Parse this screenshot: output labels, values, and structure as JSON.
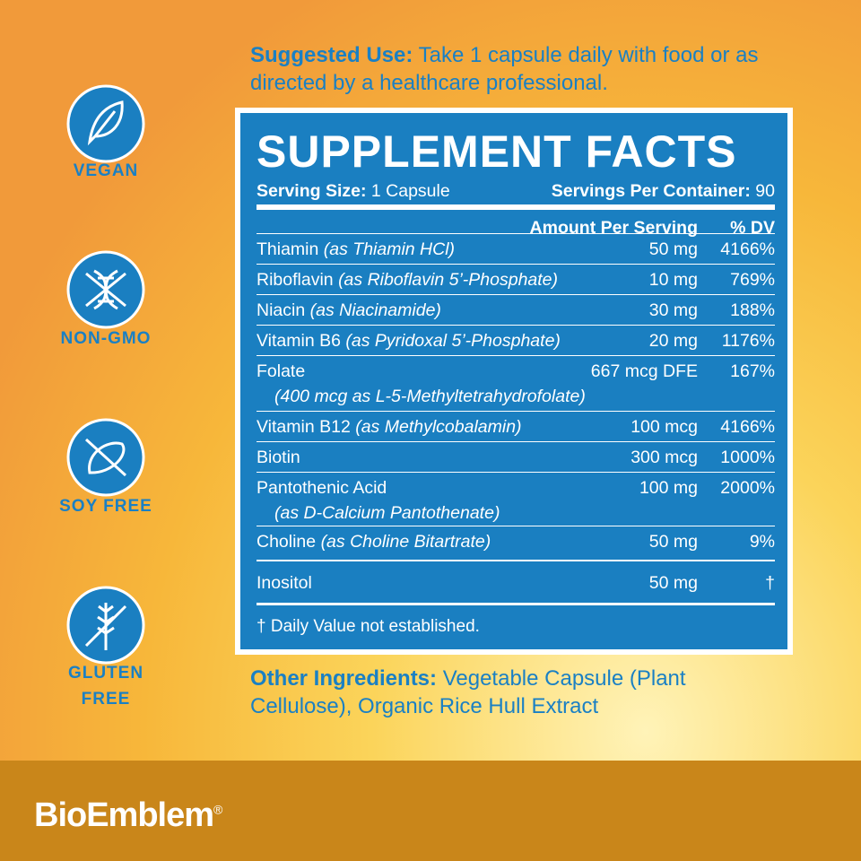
{
  "badges": [
    "VEGAN",
    "NON-GMO",
    "SOY FREE",
    "GLUTEN FREE"
  ],
  "suggested_use": {
    "label": "Suggested Use:",
    "text": "Take 1 capsule daily with food or as directed by a healthcare professional."
  },
  "facts": {
    "title": "SUPPLEMENT FACTS",
    "serving_size": {
      "label": "Serving Size:",
      "value": "1 Capsule"
    },
    "servings_per_container": {
      "label": "Servings Per Container:",
      "value": "90"
    },
    "header": {
      "amount": "Amount Per Serving",
      "dv": "% DV"
    },
    "rows": [
      {
        "name": "Thiamin",
        "source": "(as Thiamin HCl)",
        "amount": "50 mg",
        "dv": "4166%"
      },
      {
        "name": "Riboflavin",
        "source": "(as Riboflavin 5’-Phosphate)",
        "amount": "10 mg",
        "dv": "769%"
      },
      {
        "name": "Niacin",
        "source": "(as Niacinamide)",
        "amount": "30 mg",
        "dv": "188%"
      },
      {
        "name": "Vitamin B6",
        "source": "(as Pyridoxal 5’-Phosphate)",
        "amount": "20 mg",
        "dv": "1176%"
      },
      {
        "name": "Folate",
        "sub": "(400 mcg as L-5-Methyltetrahydrofolate)",
        "amount": "667 mcg DFE",
        "dv": "167%"
      },
      {
        "name": "Vitamin B12",
        "source": "(as Methylcobalamin)",
        "amount": "100 mcg",
        "dv": "4166%"
      },
      {
        "name": "Biotin",
        "amount": "300 mcg",
        "dv": "1000%"
      },
      {
        "name": "Pantothenic Acid",
        "sub": "(as D-Calcium Pantothenate)",
        "amount": "100 mg",
        "dv": "2000%"
      },
      {
        "name": "Choline",
        "source": "(as Choline Bitartrate)",
        "amount": "50 mg",
        "dv": "9%"
      },
      {
        "name": "Inositol",
        "amount": "50 mg",
        "dv": "†"
      }
    ],
    "footnote": "† Daily Value not established."
  },
  "other_ingredients": {
    "label": "Other Ingredients:",
    "text": "Vegetable Capsule (Plant Cellulose), Organic Rice Hull Extract"
  },
  "brand": {
    "name": "BioEmblem",
    "mark": "®"
  }
}
